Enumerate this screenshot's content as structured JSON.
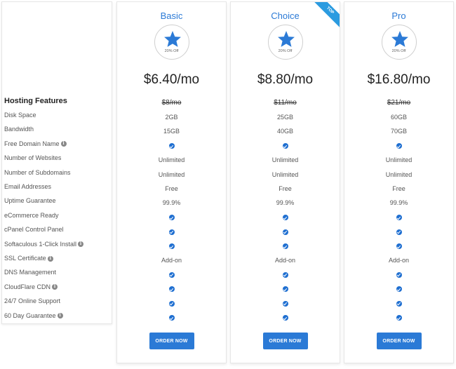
{
  "features": {
    "heading": "Hosting Features",
    "rows": [
      {
        "label": "Disk Space",
        "info": false
      },
      {
        "label": "Bandwidth",
        "info": false
      },
      {
        "label": "Free Domain Name",
        "info": true
      },
      {
        "label": "Number of Websites",
        "info": false
      },
      {
        "label": "Number of Subdomains",
        "info": false
      },
      {
        "label": "Email Addresses",
        "info": false
      },
      {
        "label": "Uptime Guarantee",
        "info": false
      },
      {
        "label": "eCommerce Ready",
        "info": false
      },
      {
        "label": "cPanel Control Panel",
        "info": false
      },
      {
        "label": "Softaculous 1-Click Install",
        "info": true
      },
      {
        "label": "SSL Certificate",
        "info": true
      },
      {
        "label": "DNS Management",
        "info": false
      },
      {
        "label": "CloudFlare CDN",
        "info": true
      },
      {
        "label": "24/7 Online Support",
        "info": false
      },
      {
        "label": "60 Day Guarantee",
        "info": true
      }
    ],
    "info_icon": "info-icon"
  },
  "plans": [
    {
      "name": "Basic",
      "badge": "20% Off",
      "price": "$6.40/mo",
      "old_price": "$8/mo",
      "ribbon": "",
      "values": [
        "2GB",
        "15GB",
        "check",
        "Unlimited",
        "Unlimited",
        "Free",
        "99.9%",
        "check",
        "check",
        "check",
        "Add-on",
        "check",
        "check",
        "check",
        "check"
      ],
      "button": "ORDER NOW"
    },
    {
      "name": "Choice",
      "badge": "20% Off",
      "price": "$8.80/mo",
      "old_price": "$11/mo",
      "ribbon": "TOP",
      "values": [
        "25GB",
        "40GB",
        "check",
        "Unlimited",
        "Unlimited",
        "Free",
        "99.9%",
        "check",
        "check",
        "check",
        "Add-on",
        "check",
        "check",
        "check",
        "check"
      ],
      "button": "ORDER NOW"
    },
    {
      "name": "Pro",
      "badge": "20% Off",
      "price": "$16.80/mo",
      "old_price": "$21/mo",
      "ribbon": "",
      "values": [
        "60GB",
        "70GB",
        "check",
        "Unlimited",
        "Unlimited",
        "Free",
        "99.9%",
        "check",
        "check",
        "check",
        "Add-on",
        "check",
        "check",
        "check",
        "check"
      ],
      "button": "ORDER NOW"
    }
  ],
  "colors": {
    "accent": "#2b7ad6",
    "check": "#1f6fd1",
    "ribbon": "#2b9be0"
  }
}
